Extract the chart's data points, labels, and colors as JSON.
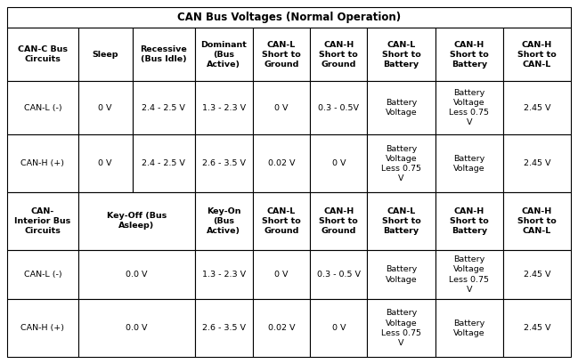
{
  "title": "CAN Bus Voltages (Normal Operation)",
  "col_widths_rel": [
    1.15,
    0.88,
    1.02,
    0.93,
    0.93,
    0.93,
    1.1,
    1.1,
    1.1
  ],
  "row_heights_rel": [
    0.5,
    1.3,
    1.3,
    1.4,
    1.4,
    1.2,
    1.4
  ],
  "header1": [
    "CAN-C Bus\nCircuits",
    "Sleep",
    "Recessive\n(Bus Idle)",
    "Dominant\n(Bus\nActive)",
    "CAN-L\nShort to\nGround",
    "CAN-H\nShort to\nGround",
    "CAN-L\nShort to\nBattery",
    "CAN-H\nShort to\nBattery",
    "CAN-H\nShort to\nCAN-L"
  ],
  "data_rows1": [
    [
      "CAN-L (-)",
      "0 V",
      "2.4 - 2.5 V",
      "1.3 - 2.3 V",
      "0 V",
      "0.3 - 0.5V",
      "Battery\nVoltage",
      "Battery\nVoltage\nLess 0.75\nV",
      "2.45 V"
    ],
    [
      "CAN-H (+)",
      "0 V",
      "2.4 - 2.5 V",
      "2.6 - 3.5 V",
      "0.02 V",
      "0 V",
      "Battery\nVoltage\nLess 0.75\nV",
      "Battery\nVoltage",
      "2.45 V"
    ]
  ],
  "header2_col0": "CAN-\nInterior Bus\nCircuits",
  "header2_merged": "Key-Off (Bus\nAsleep)",
  "header2_col3": "Key-On\n(Bus\nActive)",
  "header2_rest": [
    "CAN-L\nShort to\nGround",
    "CAN-H\nShort to\nGround",
    "CAN-L\nShort to\nBattery",
    "CAN-H\nShort to\nBattery",
    "CAN-H\nShort to\nCAN-L"
  ],
  "data_rows2": [
    [
      "CAN-L (-)",
      "0.0 V",
      "1.3 - 2.3 V",
      "0 V",
      "0.3 - 0.5 V",
      "Battery\nVoltage",
      "Battery\nVoltage\nLess 0.75\nV",
      "2.45 V"
    ],
    [
      "CAN-H (+)",
      "0.0 V",
      "2.6 - 3.5 V",
      "0.02 V",
      "0 V",
      "Battery\nVoltage\nLess 0.75\nV",
      "Battery\nVoltage",
      "2.45 V"
    ]
  ],
  "bg_color": "#ffffff",
  "border_color": "#000000",
  "text_color": "#000000",
  "font_size": 6.8,
  "title_font_size": 8.5,
  "header_font_size": 6.8
}
